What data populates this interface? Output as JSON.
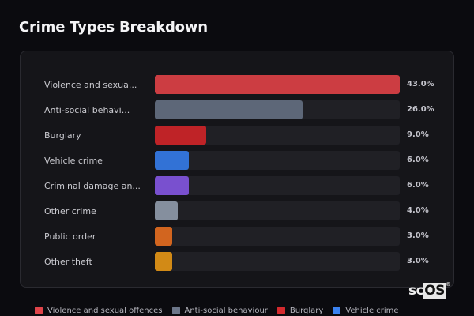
{
  "header": {
    "title": "Crime Types Breakdown"
  },
  "rows": [
    {
      "label": "Violence and sexua...",
      "value": "43.0%",
      "pct": 43.0,
      "color": "#cc3d42"
    },
    {
      "label": "Anti-social behavi...",
      "value": "26.0%",
      "pct": 26.0,
      "color": "#5d6778"
    },
    {
      "label": "Burglary",
      "value": "9.0%",
      "pct": 9.0,
      "color": "#bf2327"
    },
    {
      "label": "Vehicle crime",
      "value": "6.0%",
      "pct": 6.0,
      "color": "#3272d6"
    },
    {
      "label": "Criminal damage an...",
      "value": "6.0%",
      "pct": 6.0,
      "color": "#7950cf"
    },
    {
      "label": "Other crime",
      "value": "4.0%",
      "pct": 4.0,
      "color": "#858f9e"
    },
    {
      "label": "Public order",
      "value": "3.0%",
      "pct": 3.0,
      "color": "#d2651f"
    },
    {
      "label": "Other theft",
      "value": "3.0%",
      "pct": 3.0,
      "color": "#d28a16"
    }
  ],
  "legend": [
    {
      "label": "Violence and sexual offences",
      "color": "#e0444a"
    },
    {
      "label": "Anti-social behaviour",
      "color": "#6c7689"
    },
    {
      "label": "Burglary",
      "color": "#d42a2e"
    },
    {
      "label": "Vehicle crime",
      "color": "#3b82f0"
    }
  ],
  "logo": {
    "prefix": "sc",
    "highlight": "OS",
    "mark": "®"
  },
  "chart_data": {
    "type": "bar",
    "orientation": "horizontal",
    "title": "Crime Types Breakdown",
    "categories": [
      "Violence and sexual offences",
      "Anti-social behaviour",
      "Burglary",
      "Vehicle crime",
      "Criminal damage and arson",
      "Other crime",
      "Public order",
      "Other theft"
    ],
    "values": [
      43.0,
      26.0,
      9.0,
      6.0,
      6.0,
      4.0,
      3.0,
      3.0
    ],
    "unit": "%",
    "xlabel": "",
    "ylabel": "",
    "xlim": [
      0,
      43
    ],
    "grid": false,
    "legend_position": "bottom",
    "colors": [
      "#cc3d42",
      "#5d6778",
      "#bf2327",
      "#3272d6",
      "#7950cf",
      "#858f9e",
      "#d2651f",
      "#d28a16"
    ]
  }
}
